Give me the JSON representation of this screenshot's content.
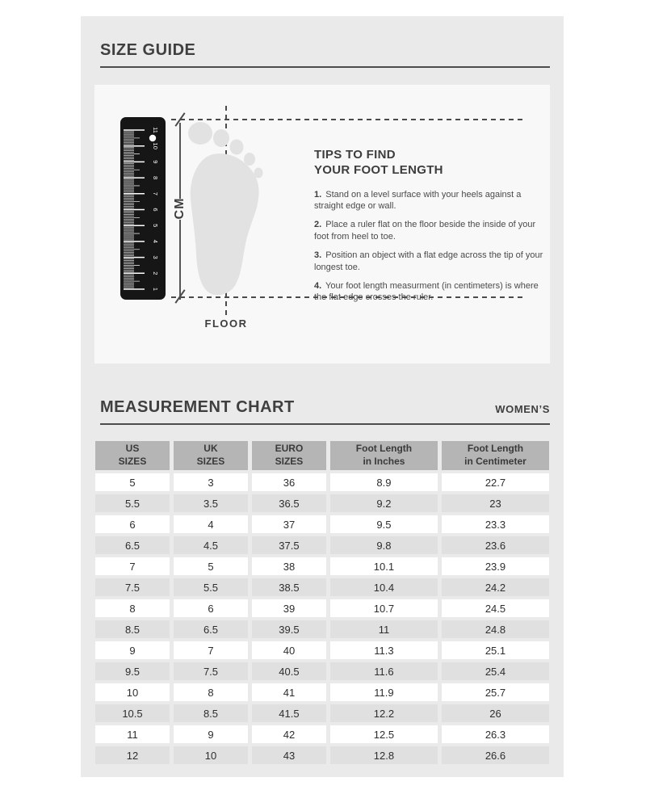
{
  "page": {
    "size_guide_title": "SIZE GUIDE",
    "measurement_chart_title": "MEASUREMENT CHART",
    "gender_label": "WOMEN’S"
  },
  "illustration": {
    "cm_label": "CM",
    "floor_label": "FLOOR",
    "ruler_numbers": [
      1,
      2,
      3,
      4,
      5,
      6,
      7,
      8,
      9,
      10,
      11
    ]
  },
  "tips": {
    "title_line1": "TIPS TO FIND",
    "title_line2": "YOUR FOOT LENGTH",
    "items": [
      {
        "num": "1.",
        "text": "Stand on a level surface with your heels against a straight edge or wall."
      },
      {
        "num": "2.",
        "text": "Place a ruler flat on the floor beside the inside of your foot from heel to toe."
      },
      {
        "num": "3.",
        "text": "Position an object with a flat edge across the tip of your longest toe."
      },
      {
        "num": "4.",
        "text": "Your foot length measurment (in centimeters) is where the flat edge crosses the ruler."
      }
    ]
  },
  "chart": {
    "headers": [
      {
        "line1": "US",
        "line2": "SIZES"
      },
      {
        "line1": "UK",
        "line2": "SIZES"
      },
      {
        "line1": "EURO",
        "line2": "SIZES"
      },
      {
        "line1": "Foot Length",
        "line2": "in Inches"
      },
      {
        "line1": "Foot Length",
        "line2": "in Centimeter"
      }
    ],
    "rows": [
      [
        "5",
        "3",
        "36",
        "8.9",
        "22.7"
      ],
      [
        "5.5",
        "3.5",
        "36.5",
        "9.2",
        "23"
      ],
      [
        "6",
        "4",
        "37",
        "9.5",
        "23.3"
      ],
      [
        "6.5",
        "4.5",
        "37.5",
        "9.8",
        "23.6"
      ],
      [
        "7",
        "5",
        "38",
        "10.1",
        "23.9"
      ],
      [
        "7.5",
        "5.5",
        "38.5",
        "10.4",
        "24.2"
      ],
      [
        "8",
        "6",
        "39",
        "10.7",
        "24.5"
      ],
      [
        "8.5",
        "6.5",
        "39.5",
        "11",
        "24.8"
      ],
      [
        "9",
        "7",
        "40",
        "11.3",
        "25.1"
      ],
      [
        "9.5",
        "7.5",
        "40.5",
        "11.6",
        "25.4"
      ],
      [
        "10",
        "8",
        "41",
        "11.9",
        "25.7"
      ],
      [
        "10.5",
        "8.5",
        "41.5",
        "12.2",
        "26"
      ],
      [
        "11",
        "9",
        "42",
        "12.5",
        "26.3"
      ],
      [
        "12",
        "10",
        "43",
        "12.8",
        "26.6"
      ]
    ]
  },
  "colors": {
    "panel": "#eaeaea",
    "illustration_box": "#f8f8f8",
    "header_cell": "#b5b5b5",
    "alt_row": "#e0e0e0",
    "rule_line": "#4c4c4c",
    "text_dark": "#3f3f3f",
    "foot_fill": "#e2e2e2",
    "ruler_black": "#161616"
  }
}
